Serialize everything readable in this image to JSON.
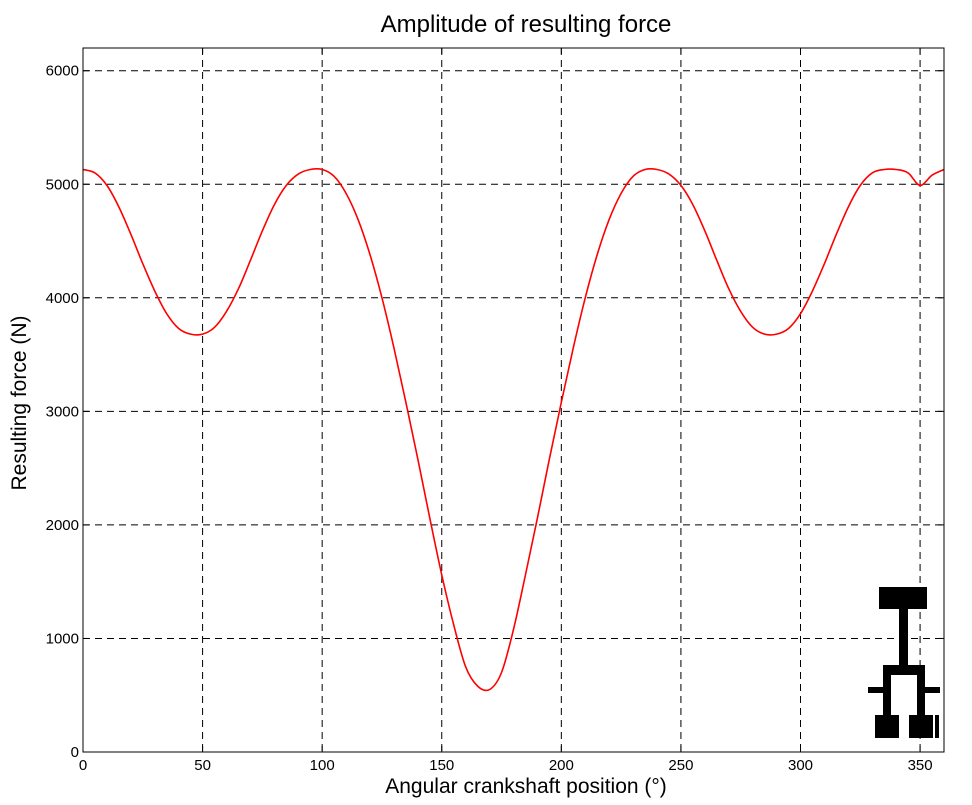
{
  "chart_data": {
    "type": "line",
    "title": "Amplitude of resulting force",
    "xlabel": "Angular crankshaft position (°)",
    "ylabel": "Resulting force (N)",
    "xlim": [
      0,
      360
    ],
    "ylim": [
      0,
      6200
    ],
    "xticks": [
      0,
      50,
      100,
      150,
      200,
      250,
      300,
      350
    ],
    "yticks": [
      0,
      1000,
      2000,
      3000,
      4000,
      5000,
      6000
    ],
    "xtick_labels": [
      "0",
      "50",
      "100",
      "150",
      "200",
      "250",
      "300",
      "350"
    ],
    "ytick_labels": [
      "0",
      "1000",
      "2000",
      "3000",
      "4000",
      "5000",
      "6000"
    ],
    "grid": true,
    "legend": false,
    "series": [
      {
        "color": "#ff0000",
        "x": [
          0,
          5,
          10,
          15,
          20,
          25,
          30,
          35,
          40,
          45,
          50,
          55,
          60,
          65,
          70,
          75,
          80,
          85,
          90,
          95,
          100,
          105,
          110,
          115,
          120,
          125,
          130,
          135,
          140,
          145,
          150,
          155,
          160,
          165,
          170,
          175,
          180,
          185,
          190,
          195,
          200,
          205,
          210,
          215,
          220,
          225,
          230,
          235,
          240,
          245,
          250,
          255,
          260,
          265,
          270,
          275,
          280,
          285,
          290,
          295,
          300,
          305,
          310,
          315,
          320,
          325,
          330,
          335,
          340,
          345,
          350,
          355,
          360
        ],
        "y": [
          5130,
          5100,
          4990,
          4800,
          4560,
          4300,
          4060,
          3860,
          3730,
          3680,
          3680,
          3740,
          3880,
          4080,
          4330,
          4590,
          4820,
          4990,
          5090,
          5130,
          5130,
          5070,
          4920,
          4690,
          4380,
          4000,
          3560,
          3080,
          2580,
          2060,
          1560,
          1120,
          750,
          580,
          550,
          700,
          1080,
          1560,
          2060,
          2580,
          3080,
          3560,
          4000,
          4380,
          4690,
          4920,
          5070,
          5130,
          5130,
          5090,
          4990,
          4820,
          4590,
          4330,
          4080,
          3880,
          3740,
          3680,
          3680,
          3730,
          3860,
          4060,
          4300,
          4560,
          4800,
          4990,
          5100,
          5130,
          5130,
          5100,
          4990,
          5080,
          5130
        ]
      }
    ]
  }
}
